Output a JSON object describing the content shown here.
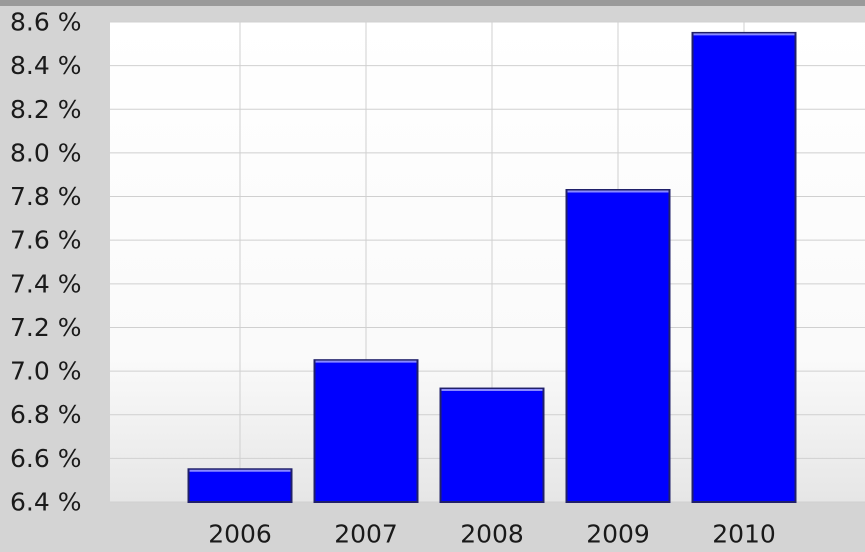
{
  "chart_data": {
    "type": "bar",
    "categories": [
      "2006",
      "2007",
      "2008",
      "2009",
      "2010"
    ],
    "values": [
      6.55,
      7.05,
      6.92,
      7.83,
      8.55
    ],
    "title": "",
    "xlabel": "",
    "ylabel": "",
    "ylim": [
      6.4,
      8.6
    ],
    "yticks": [
      "6.4 %",
      "6.6 %",
      "6.8 %",
      "7.0 %",
      "7.2 %",
      "7.4 %",
      "7.6 %",
      "7.8 %",
      "8.0 %",
      "8.2 %",
      "8.4 %",
      "8.6 %"
    ],
    "ytick_values": [
      6.4,
      6.6,
      6.8,
      7.0,
      7.2,
      7.4,
      7.6,
      7.8,
      8.0,
      8.2,
      8.4,
      8.6
    ],
    "grid": true,
    "legend": "none",
    "bar_color": "#0000ff",
    "bar_edge_color": "#20206a",
    "plot_background": "#ffffff",
    "frame_background": "#d4d4d4"
  }
}
